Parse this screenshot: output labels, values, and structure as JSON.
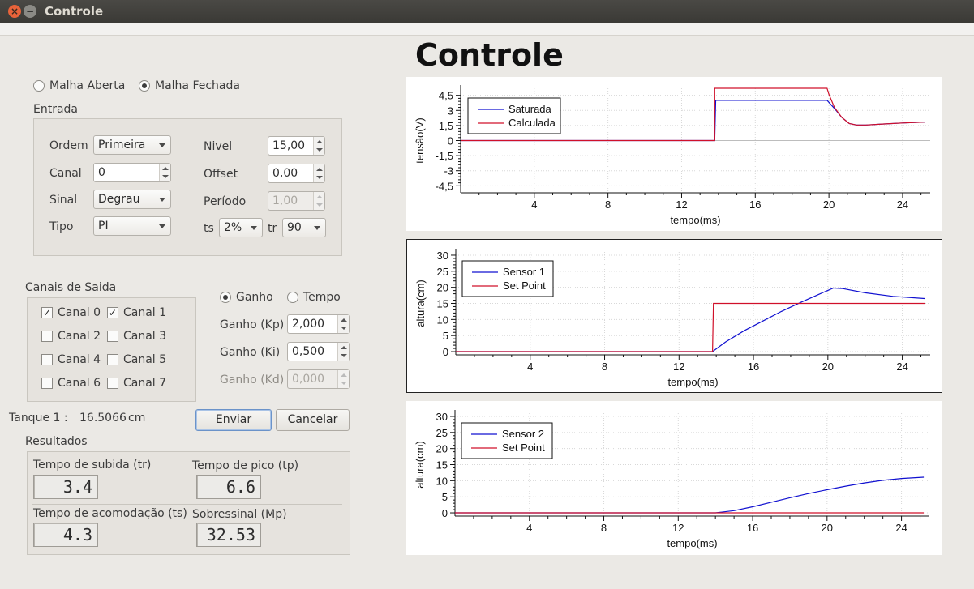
{
  "window": {
    "title": "Controle"
  },
  "header": {
    "title": "Controle"
  },
  "mode": {
    "options": [
      "Malha Aberta",
      "Malha Fechada"
    ],
    "selected": "Malha Fechada"
  },
  "entrada": {
    "title": "Entrada",
    "ordem": {
      "label": "Ordem",
      "value": "Primeira"
    },
    "canal": {
      "label": "Canal",
      "value": "0"
    },
    "sinal": {
      "label": "Sinal",
      "value": "Degrau"
    },
    "tipo": {
      "label": "Tipo",
      "value": "PI"
    },
    "nivel": {
      "label": "Nivel",
      "value": "15,00"
    },
    "offset": {
      "label": "Offset",
      "value": "0,00"
    },
    "periodo": {
      "label": "Período",
      "value": "1,00",
      "disabled": true
    },
    "ts": {
      "label": "ts",
      "value": "2%"
    },
    "tr": {
      "label": "tr",
      "value": "90"
    }
  },
  "canais": {
    "title": "Canais de Saida",
    "items": [
      {
        "label": "Canal 0",
        "checked": true
      },
      {
        "label": "Canal 1",
        "checked": true
      },
      {
        "label": "Canal 2",
        "checked": false
      },
      {
        "label": "Canal 3",
        "checked": false
      },
      {
        "label": "Canal 4",
        "checked": false
      },
      {
        "label": "Canal 5",
        "checked": false
      },
      {
        "label": "Canal 6",
        "checked": false
      },
      {
        "label": "Canal 7",
        "checked": false
      }
    ]
  },
  "ganho_mode": {
    "options": [
      "Ganho",
      "Tempo"
    ],
    "selected": "Ganho"
  },
  "ganhos": {
    "kp": {
      "label": "Ganho (Kp)",
      "value": "2,000"
    },
    "ki": {
      "label": "Ganho (Ki)",
      "value": "0,500"
    },
    "kd": {
      "label": "Ganho (Kd)",
      "value": "0,000",
      "disabled": true
    }
  },
  "tanque": {
    "label": "Tanque 1 :",
    "value": "16.5066",
    "unit": "cm"
  },
  "buttons": {
    "send": "Enviar",
    "cancel": "Cancelar"
  },
  "resultados": {
    "title": "Resultados",
    "tr": {
      "label": "Tempo de subida (tr)",
      "value": "3.4"
    },
    "tp": {
      "label": "Tempo de pico (tp)",
      "value": "6.6"
    },
    "ts": {
      "label": "Tempo de acomodação (ts)",
      "value": "4.3"
    },
    "mp": {
      "label": "Sobressinal (Mp)",
      "value": "32.53"
    }
  },
  "colors": {
    "blue": "#1010d0",
    "red": "#d0102a",
    "window_bg": "#ebe9e5"
  },
  "chart_data": [
    {
      "type": "line",
      "xlabel": "tempo(ms)",
      "ylabel": "tensão(V)",
      "xlim": [
        0,
        25.5
      ],
      "ylim": [
        -5.2,
        5.2
      ],
      "xticks": [
        4,
        8,
        12,
        16,
        20,
        24
      ],
      "yticks": [
        4.5,
        3,
        1.5,
        0,
        -1.5,
        -3,
        -4.5
      ],
      "ytick_labels": [
        "4,5",
        "3",
        "1,5",
        "0",
        "-1,5",
        "-3",
        "-4,5"
      ],
      "grid": true,
      "legend": "top-left",
      "series": [
        {
          "name": "Saturada",
          "color": "#1010d0",
          "points": [
            [
              0,
              0
            ],
            [
              13.8,
              0
            ],
            [
              13.85,
              4.0
            ],
            [
              19.9,
              4.0
            ],
            [
              20.3,
              3.2
            ],
            [
              20.7,
              2.3
            ],
            [
              21.1,
              1.7
            ],
            [
              21.5,
              1.55
            ],
            [
              22,
              1.55
            ],
            [
              23,
              1.65
            ],
            [
              24,
              1.75
            ],
            [
              25.2,
              1.85
            ]
          ]
        },
        {
          "name": "Calculada",
          "color": "#d0102a",
          "points": [
            [
              0,
              0
            ],
            [
              13.8,
              0
            ],
            [
              13.8,
              5.2
            ],
            [
              19.9,
              5.2
            ],
            [
              20.0,
              4.6
            ],
            [
              20.3,
              3.3
            ],
            [
              20.7,
              2.3
            ],
            [
              21.1,
              1.7
            ],
            [
              21.5,
              1.55
            ],
            [
              22,
              1.55
            ],
            [
              23,
              1.65
            ],
            [
              24,
              1.75
            ],
            [
              25.2,
              1.85
            ]
          ]
        }
      ]
    },
    {
      "type": "line",
      "xlabel": "tempo(ms)",
      "ylabel": "altura(cm)",
      "xlim": [
        0,
        25.5
      ],
      "ylim": [
        -1,
        31
      ],
      "xticks": [
        4,
        8,
        12,
        16,
        20,
        24
      ],
      "yticks": [
        30,
        25,
        20,
        15,
        10,
        5,
        0
      ],
      "grid": true,
      "legend": "top-left",
      "series": [
        {
          "name": "Sensor 1",
          "color": "#1010d0",
          "points": [
            [
              0,
              0
            ],
            [
              13.8,
              0
            ],
            [
              14.5,
              3
            ],
            [
              15.5,
              6.5
            ],
            [
              16.5,
              9.5
            ],
            [
              17.5,
              12.5
            ],
            [
              18.5,
              15.2
            ],
            [
              19.5,
              17.8
            ],
            [
              20.3,
              19.8
            ],
            [
              20.8,
              19.6
            ],
            [
              22,
              18.3
            ],
            [
              23.5,
              17.2
            ],
            [
              25.2,
              16.5
            ]
          ]
        },
        {
          "name": "Set Point",
          "color": "#d0102a",
          "points": [
            [
              0,
              0
            ],
            [
              13.8,
              0
            ],
            [
              13.85,
              15
            ],
            [
              25.2,
              15
            ]
          ]
        }
      ]
    },
    {
      "type": "line",
      "xlabel": "tempo(ms)",
      "ylabel": "altura(cm)",
      "xlim": [
        0,
        25.5
      ],
      "ylim": [
        -1,
        31
      ],
      "xticks": [
        4,
        8,
        12,
        16,
        20,
        24
      ],
      "yticks": [
        30,
        25,
        20,
        15,
        10,
        5,
        0
      ],
      "grid": true,
      "legend": "top-left",
      "series": [
        {
          "name": "Sensor 2",
          "color": "#1010d0",
          "points": [
            [
              0,
              0
            ],
            [
              14,
              0
            ],
            [
              15,
              0.7
            ],
            [
              16,
              1.9
            ],
            [
              17,
              3.3
            ],
            [
              18,
              4.7
            ],
            [
              19,
              6
            ],
            [
              20,
              7.2
            ],
            [
              21,
              8.3
            ],
            [
              22,
              9.3
            ],
            [
              23,
              10.1
            ],
            [
              24,
              10.7
            ],
            [
              25.2,
              11.1
            ]
          ]
        },
        {
          "name": "Set Point",
          "color": "#d0102a",
          "points": [
            [
              0,
              0
            ],
            [
              25.2,
              0
            ]
          ]
        }
      ]
    }
  ]
}
